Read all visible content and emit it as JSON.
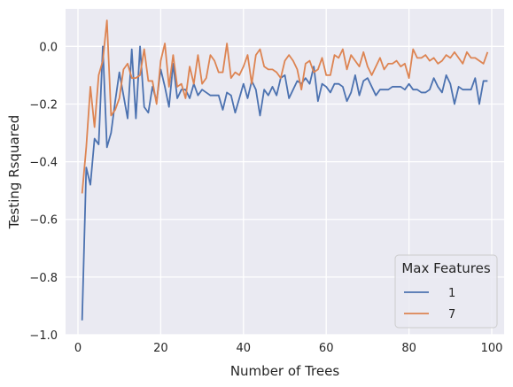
{
  "chart_data": {
    "type": "line",
    "xlabel": "Number of Trees",
    "ylabel": "Testing Rsquared",
    "xlim": [
      -3,
      103
    ],
    "ylim": [
      -1.0,
      0.13
    ],
    "xticks": [
      0,
      20,
      40,
      60,
      80,
      100
    ],
    "yticks": [
      -1.0,
      -0.8,
      -0.6,
      -0.4,
      -0.2,
      0.0
    ],
    "xtick_labels": [
      "0",
      "20",
      "40",
      "60",
      "80",
      "100"
    ],
    "ytick_labels": [
      "−1.0",
      "−0.8",
      "−0.6",
      "−0.4",
      "−0.2",
      "0.0"
    ],
    "grid": true,
    "background_color": "#eaeaf2",
    "legend": {
      "title": "Max Features",
      "placement": "lower-right"
    },
    "series": [
      {
        "name": "1",
        "color": "#4c72b0",
        "x": [
          1,
          2,
          3,
          4,
          5,
          6,
          7,
          8,
          9,
          10,
          11,
          12,
          13,
          14,
          15,
          16,
          17,
          18,
          19,
          20,
          21,
          22,
          23,
          24,
          25,
          26,
          27,
          28,
          29,
          30,
          31,
          32,
          33,
          34,
          35,
          36,
          37,
          38,
          39,
          40,
          41,
          42,
          43,
          44,
          45,
          46,
          47,
          48,
          49,
          50,
          51,
          52,
          53,
          54,
          55,
          56,
          57,
          58,
          59,
          60,
          61,
          62,
          63,
          64,
          65,
          66,
          67,
          68,
          69,
          70,
          71,
          72,
          73,
          74,
          75,
          76,
          77,
          78,
          79,
          80,
          81,
          82,
          83,
          84,
          85,
          86,
          87,
          88,
          89,
          90,
          91,
          92,
          93,
          94,
          95,
          96,
          97,
          98,
          99
        ],
        "values": [
          -0.95,
          -0.42,
          -0.48,
          -0.32,
          -0.34,
          0.0,
          -0.35,
          -0.3,
          -0.19,
          -0.09,
          -0.17,
          -0.25,
          -0.01,
          -0.25,
          0.0,
          -0.21,
          -0.23,
          -0.14,
          -0.19,
          -0.08,
          -0.14,
          -0.21,
          -0.06,
          -0.18,
          -0.15,
          -0.15,
          -0.18,
          -0.13,
          -0.17,
          -0.15,
          -0.16,
          -0.17,
          -0.17,
          -0.17,
          -0.22,
          -0.16,
          -0.17,
          -0.23,
          -0.18,
          -0.13,
          -0.18,
          -0.12,
          -0.15,
          -0.24,
          -0.15,
          -0.17,
          -0.14,
          -0.17,
          -0.11,
          -0.1,
          -0.18,
          -0.15,
          -0.12,
          -0.13,
          -0.11,
          -0.13,
          -0.07,
          -0.19,
          -0.13,
          -0.14,
          -0.16,
          -0.13,
          -0.13,
          -0.14,
          -0.19,
          -0.16,
          -0.1,
          -0.17,
          -0.12,
          -0.11,
          -0.14,
          -0.17,
          -0.15,
          -0.15,
          -0.15,
          -0.14,
          -0.14,
          -0.14,
          -0.15,
          -0.13,
          -0.15,
          -0.15,
          -0.16,
          -0.16,
          -0.15,
          -0.11,
          -0.14,
          -0.16,
          -0.1,
          -0.13,
          -0.2,
          -0.14,
          -0.15,
          -0.15,
          -0.15,
          -0.11,
          -0.2,
          -0.12,
          -0.12
        ]
      },
      {
        "name": "7",
        "color": "#dd8452",
        "x": [
          1,
          2,
          3,
          4,
          5,
          6,
          7,
          8,
          9,
          10,
          11,
          12,
          13,
          14,
          15,
          16,
          17,
          18,
          19,
          20,
          21,
          22,
          23,
          24,
          25,
          26,
          27,
          28,
          29,
          30,
          31,
          32,
          33,
          34,
          35,
          36,
          37,
          38,
          39,
          40,
          41,
          42,
          43,
          44,
          45,
          46,
          47,
          48,
          49,
          50,
          51,
          52,
          53,
          54,
          55,
          56,
          57,
          58,
          59,
          60,
          61,
          62,
          63,
          64,
          65,
          66,
          67,
          68,
          69,
          70,
          71,
          72,
          73,
          74,
          75,
          76,
          77,
          78,
          79,
          80,
          81,
          82,
          83,
          84,
          85,
          86,
          87,
          88,
          89,
          90,
          91,
          92,
          93,
          94,
          95,
          96,
          97,
          98,
          99
        ],
        "values": [
          -0.51,
          -0.35,
          -0.14,
          -0.28,
          -0.1,
          -0.05,
          0.09,
          -0.24,
          -0.22,
          -0.18,
          -0.08,
          -0.06,
          -0.11,
          -0.11,
          -0.1,
          -0.01,
          -0.12,
          -0.12,
          -0.2,
          -0.05,
          0.01,
          -0.14,
          -0.03,
          -0.14,
          -0.13,
          -0.18,
          -0.07,
          -0.13,
          -0.03,
          -0.13,
          -0.11,
          -0.03,
          -0.05,
          -0.09,
          -0.09,
          0.01,
          -0.11,
          -0.09,
          -0.1,
          -0.07,
          -0.03,
          -0.13,
          -0.03,
          -0.01,
          -0.07,
          -0.08,
          -0.08,
          -0.09,
          -0.11,
          -0.05,
          -0.03,
          -0.05,
          -0.08,
          -0.15,
          -0.06,
          -0.05,
          -0.09,
          -0.08,
          -0.04,
          -0.1,
          -0.1,
          -0.03,
          -0.04,
          -0.01,
          -0.08,
          -0.03,
          -0.05,
          -0.07,
          -0.02,
          -0.07,
          -0.1,
          -0.07,
          -0.04,
          -0.08,
          -0.06,
          -0.06,
          -0.05,
          -0.07,
          -0.06,
          -0.11,
          -0.01,
          -0.04,
          -0.04,
          -0.03,
          -0.05,
          -0.04,
          -0.06,
          -0.05,
          -0.03,
          -0.04,
          -0.02,
          -0.04,
          -0.06,
          -0.02,
          -0.04,
          -0.04,
          -0.05,
          -0.06,
          -0.02
        ]
      }
    ]
  }
}
